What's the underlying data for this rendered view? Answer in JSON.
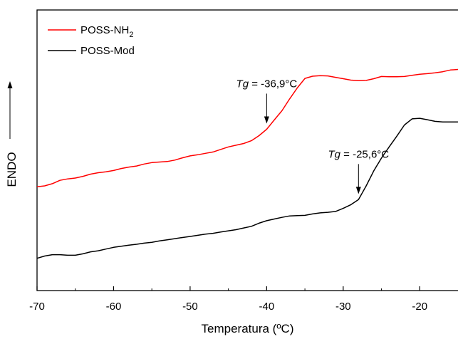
{
  "chart_data": {
    "type": "line",
    "xlabel": "Temperatura (ºC)",
    "ylabel": "ENDO",
    "xlim": [
      -70,
      -15
    ],
    "ylim": [
      0,
      100
    ],
    "x_ticks": [
      "-70",
      "-60",
      "-50",
      "-40",
      "-30",
      "-20"
    ],
    "y_ticks_labeled": false,
    "ylabel_arrow": "up",
    "grid": false,
    "legend_position": "top-left",
    "series": [
      {
        "name": "POSS-NH2",
        "legend_label": {
          "base": "POSS-NH",
          "sub": "2"
        },
        "color": "#ff0000",
        "x": [
          -70,
          -69,
          -68,
          -67,
          -66,
          -65,
          -64,
          -63,
          -62,
          -61,
          -60,
          -59,
          -58,
          -57,
          -56,
          -55,
          -54,
          -53,
          -52,
          -51,
          -50,
          -49,
          -48,
          -47,
          -46,
          -45,
          -44,
          -43,
          -42,
          -41,
          -40,
          -39,
          -38,
          -37,
          -36,
          -35,
          -34,
          -33,
          -32,
          -31,
          -30,
          -29,
          -28,
          -27,
          -26,
          -25,
          -24,
          -23,
          -22,
          -21,
          -20,
          -19,
          -18,
          -17,
          -16,
          -15
        ],
        "y": [
          37.0,
          37.3,
          38.1,
          39.3,
          39.8,
          40.1,
          40.7,
          41.5,
          42.0,
          42.3,
          42.8,
          43.5,
          44.0,
          44.4,
          45.1,
          45.6,
          45.8,
          46.0,
          46.5,
          47.3,
          48.0,
          48.4,
          48.9,
          49.4,
          50.3,
          51.2,
          51.8,
          52.4,
          53.4,
          55.2,
          57.5,
          60.8,
          64.1,
          68.3,
          72.2,
          75.6,
          76.4,
          76.6,
          76.5,
          76.0,
          75.5,
          75.0,
          74.8,
          74.9,
          75.5,
          76.3,
          76.2,
          76.2,
          76.3,
          76.7,
          77.1,
          77.3,
          77.6,
          78.0,
          78.6,
          78.8
        ]
      },
      {
        "name": "POSS-Mod",
        "legend_label": {
          "base": "POSS-Mod",
          "sub": ""
        },
        "color": "#000000",
        "x": [
          -70,
          -69,
          -68,
          -67,
          -66,
          -65,
          -64,
          -63,
          -62,
          -61,
          -60,
          -59,
          -58,
          -57,
          -56,
          -55,
          -54,
          -53,
          -52,
          -51,
          -50,
          -49,
          -48,
          -47,
          -46,
          -45,
          -44,
          -43,
          -42,
          -41,
          -40,
          -39,
          -38,
          -37,
          -36,
          -35,
          -34,
          -33,
          -32,
          -31,
          -30,
          -29,
          -28,
          -27,
          -26,
          -25,
          -24,
          -23,
          -22,
          -21,
          -20,
          -19,
          -18,
          -17,
          -16,
          -15
        ],
        "y": [
          11.5,
          12.3,
          12.8,
          12.8,
          12.6,
          12.6,
          13.1,
          13.8,
          14.2,
          14.8,
          15.4,
          15.8,
          16.2,
          16.5,
          16.9,
          17.2,
          17.7,
          18.1,
          18.5,
          18.9,
          19.3,
          19.7,
          20.1,
          20.4,
          20.9,
          21.3,
          21.7,
          22.3,
          22.9,
          24.0,
          24.9,
          25.5,
          26.1,
          26.6,
          26.7,
          26.8,
          27.3,
          27.7,
          27.9,
          28.2,
          29.3,
          30.6,
          32.4,
          37.3,
          42.7,
          47.2,
          51.2,
          55.0,
          59.0,
          61.2,
          61.4,
          60.9,
          60.3,
          60.1,
          60.1,
          60.1
        ]
      }
    ],
    "annotations": [
      {
        "label_italic": "Tg",
        "label_rest": " = -36,9°C",
        "x": -40,
        "series": "POSS-NH2"
      },
      {
        "label_italic": "Tg",
        "label_rest": " = -25,6°C",
        "x": -28,
        "series": "POSS-Mod"
      }
    ]
  }
}
